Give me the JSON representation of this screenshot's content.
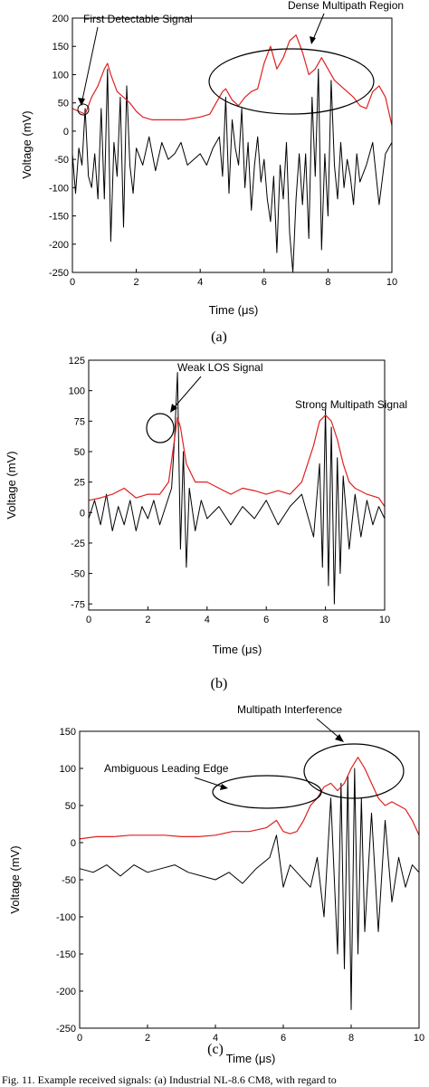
{
  "caption": "Fig. 11.  Example received signals: (a) Industrial NL-8.6 CM8, with regard to",
  "chart_data": [
    {
      "type": "line",
      "panel_label": "(a)",
      "xlabel": "Time (μs)",
      "ylabel": "Voltage (mV)",
      "xlim": [
        0,
        10
      ],
      "ylim": [
        -250,
        200
      ],
      "xticks": [
        0,
        2,
        4,
        6,
        8,
        10
      ],
      "yticks": [
        -250,
        -200,
        -150,
        -100,
        -50,
        0,
        50,
        100,
        150,
        200
      ],
      "series": [
        {
          "color": "#000000",
          "x": [
            0,
            0.1,
            0.2,
            0.3,
            0.4,
            0.5,
            0.6,
            0.7,
            0.8,
            0.9,
            1.0,
            1.1,
            1.2,
            1.3,
            1.4,
            1.5,
            1.6,
            1.7,
            1.8,
            1.9,
            2.0,
            2.2,
            2.4,
            2.6,
            2.8,
            3.0,
            3.2,
            3.4,
            3.6,
            3.8,
            4.0,
            4.2,
            4.4,
            4.6,
            4.7,
            4.8,
            4.9,
            5.0,
            5.1,
            5.2,
            5.3,
            5.4,
            5.5,
            5.6,
            5.7,
            5.8,
            5.9,
            6.0,
            6.1,
            6.2,
            6.3,
            6.4,
            6.5,
            6.6,
            6.7,
            6.8,
            6.9,
            7.0,
            7.1,
            7.2,
            7.3,
            7.4,
            7.5,
            7.6,
            7.7,
            7.8,
            7.9,
            8.0,
            8.1,
            8.2,
            8.3,
            8.4,
            8.5,
            8.6,
            8.7,
            8.8,
            8.9,
            9.0,
            9.2,
            9.4,
            9.6,
            9.8,
            10.0
          ],
          "y": [
            -40,
            -110,
            -30,
            -60,
            40,
            -80,
            -100,
            -40,
            -120,
            40,
            -120,
            110,
            -195,
            -20,
            -80,
            60,
            -170,
            80,
            -60,
            -110,
            -30,
            -60,
            -10,
            -70,
            -20,
            -50,
            -40,
            -20,
            -60,
            -50,
            -40,
            -60,
            -30,
            -10,
            -80,
            60,
            -110,
            20,
            -30,
            -60,
            40,
            -100,
            -20,
            -140,
            -60,
            -10,
            -90,
            -50,
            -120,
            -160,
            -80,
            -215,
            -60,
            -120,
            -20,
            -180,
            -250,
            -120,
            -40,
            -130,
            -40,
            -190,
            60,
            -80,
            110,
            -210,
            -40,
            -150,
            90,
            -60,
            -120,
            -20,
            -100,
            -50,
            -80,
            -130,
            -40,
            -90,
            -60,
            -20,
            -130,
            -40,
            -20
          ]
        },
        {
          "color": "#e02020",
          "x": [
            0,
            0.2,
            0.4,
            0.6,
            0.8,
            1.0,
            1.1,
            1.2,
            1.4,
            1.6,
            1.8,
            2.0,
            2.2,
            2.5,
            3.0,
            3.5,
            4.0,
            4.3,
            4.5,
            4.7,
            4.8,
            5.0,
            5.2,
            5.4,
            5.6,
            5.8,
            6.0,
            6.2,
            6.4,
            6.6,
            6.8,
            7.0,
            7.2,
            7.4,
            7.6,
            7.8,
            8.0,
            8.2,
            8.4,
            8.6,
            8.8,
            9.0,
            9.2,
            9.4,
            9.6,
            9.8,
            10.0
          ],
          "y": [
            40,
            35,
            30,
            60,
            80,
            110,
            120,
            100,
            70,
            60,
            50,
            35,
            25,
            20,
            20,
            20,
            25,
            30,
            50,
            70,
            75,
            55,
            45,
            60,
            70,
            75,
            120,
            150,
            110,
            130,
            160,
            170,
            140,
            100,
            110,
            130,
            110,
            90,
            80,
            70,
            60,
            45,
            40,
            70,
            80,
            60,
            10
          ]
        }
      ],
      "annotations": [
        "First Detectable Signal",
        "Dense Multipath Region"
      ]
    },
    {
      "type": "line",
      "panel_label": "(b)",
      "xlabel": "Time (μs)",
      "ylabel": "Voltage (mV)",
      "xlim": [
        0,
        10
      ],
      "ylim": [
        -80,
        125
      ],
      "xticks": [
        0,
        2,
        4,
        6,
        8,
        10
      ],
      "yticks": [
        -75,
        -50,
        -25,
        0,
        25,
        50,
        75,
        100,
        125
      ],
      "series": [
        {
          "color": "#000000",
          "x": [
            0,
            0.2,
            0.4,
            0.6,
            0.8,
            1.0,
            1.2,
            1.4,
            1.6,
            1.8,
            2.0,
            2.2,
            2.4,
            2.6,
            2.8,
            2.9,
            3.0,
            3.1,
            3.2,
            3.3,
            3.4,
            3.6,
            3.8,
            4.0,
            4.4,
            4.8,
            5.2,
            5.6,
            6.0,
            6.4,
            6.8,
            7.2,
            7.6,
            7.8,
            7.9,
            8.0,
            8.1,
            8.2,
            8.3,
            8.4,
            8.5,
            8.6,
            8.8,
            9.0,
            9.2,
            9.4,
            9.6,
            9.8,
            10.0
          ],
          "y": [
            -5,
            10,
            -10,
            15,
            -15,
            5,
            -10,
            10,
            -15,
            5,
            -5,
            10,
            -10,
            5,
            20,
            60,
            115,
            -30,
            50,
            -45,
            20,
            -15,
            10,
            -5,
            5,
            -10,
            5,
            -5,
            10,
            -10,
            5,
            15,
            -20,
            40,
            -45,
            85,
            -60,
            70,
            -75,
            45,
            -50,
            30,
            -30,
            15,
            -20,
            10,
            -10,
            5,
            -5
          ]
        },
        {
          "color": "#e02020",
          "x": [
            0,
            0.4,
            0.8,
            1.2,
            1.6,
            2.0,
            2.4,
            2.7,
            2.9,
            3.0,
            3.1,
            3.3,
            3.6,
            4.0,
            4.4,
            4.8,
            5.2,
            5.6,
            6.0,
            6.4,
            6.8,
            7.2,
            7.6,
            7.8,
            8.0,
            8.2,
            8.4,
            8.6,
            8.8,
            9.0,
            9.4,
            9.8,
            10.0
          ],
          "y": [
            10,
            12,
            15,
            20,
            12,
            15,
            15,
            25,
            60,
            78,
            70,
            40,
            25,
            25,
            20,
            15,
            20,
            18,
            15,
            18,
            15,
            25,
            55,
            75,
            80,
            75,
            60,
            40,
            25,
            20,
            15,
            12,
            5
          ]
        }
      ],
      "annotations": [
        "Weak LOS Signal",
        "Strong Multipath Signal"
      ]
    },
    {
      "type": "line",
      "panel_label": "(c)",
      "xlabel": "Time (μs)",
      "ylabel": "Voltage (mV)",
      "xlim": [
        0,
        10
      ],
      "ylim": [
        -250,
        150
      ],
      "xticks": [
        0,
        2,
        4,
        6,
        8,
        10
      ],
      "yticks": [
        -250,
        -200,
        -150,
        -100,
        -50,
        0,
        50,
        100,
        150
      ],
      "series": [
        {
          "color": "#000000",
          "x": [
            0,
            0.4,
            0.8,
            1.2,
            1.6,
            2.0,
            2.4,
            2.8,
            3.2,
            3.6,
            4.0,
            4.4,
            4.8,
            5.2,
            5.6,
            5.8,
            6.0,
            6.2,
            6.4,
            6.8,
            7.0,
            7.2,
            7.4,
            7.6,
            7.7,
            7.8,
            7.9,
            8.0,
            8.1,
            8.2,
            8.3,
            8.4,
            8.6,
            8.8,
            9.0,
            9.2,
            9.4,
            9.6,
            9.8,
            10.0
          ],
          "y": [
            -35,
            -40,
            -30,
            -45,
            -30,
            -40,
            -35,
            -30,
            -40,
            -45,
            -50,
            -40,
            -55,
            -35,
            -20,
            10,
            -60,
            -30,
            -40,
            -60,
            -20,
            -100,
            60,
            -150,
            80,
            -170,
            90,
            -225,
            100,
            -150,
            60,
            -120,
            40,
            -120,
            30,
            -80,
            -20,
            -60,
            -30,
            -40
          ]
        },
        {
          "color": "#e02020",
          "x": [
            0,
            0.5,
            1.0,
            1.5,
            2.0,
            2.5,
            3.0,
            3.5,
            4.0,
            4.5,
            5.0,
            5.5,
            5.8,
            6.0,
            6.2,
            6.4,
            6.6,
            6.8,
            7.0,
            7.2,
            7.4,
            7.6,
            7.8,
            8.0,
            8.2,
            8.4,
            8.6,
            8.8,
            9.0,
            9.2,
            9.4,
            9.6,
            9.8,
            10.0
          ],
          "y": [
            5,
            8,
            8,
            10,
            10,
            10,
            8,
            8,
            10,
            15,
            15,
            20,
            30,
            15,
            12,
            15,
            30,
            50,
            60,
            75,
            80,
            70,
            80,
            100,
            115,
            100,
            80,
            60,
            50,
            55,
            50,
            45,
            30,
            10
          ]
        }
      ],
      "annotations": [
        "Ambiguous Leading Edge",
        "Multipath Interference"
      ]
    }
  ]
}
